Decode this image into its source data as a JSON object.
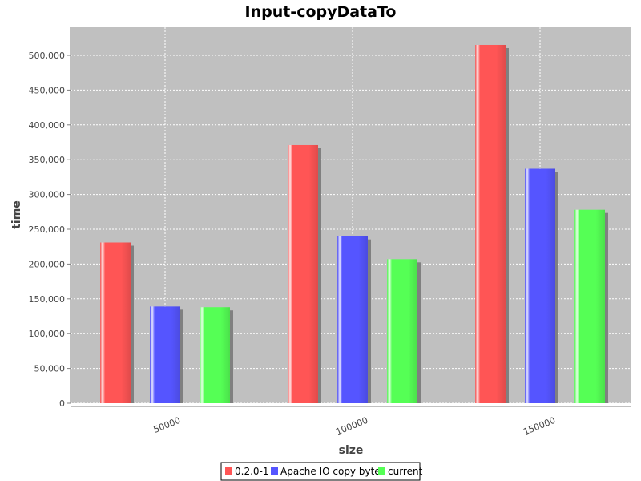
{
  "chart_data": {
    "type": "bar",
    "title": "Input-copyDataTo",
    "xlabel": "size",
    "ylabel": "time",
    "categories": [
      "50000",
      "100000",
      "150000"
    ],
    "series": [
      {
        "name": "0.2.0-1",
        "color": "#ff5555",
        "values": [
          231000,
          371000,
          515000
        ]
      },
      {
        "name": "Apache IO copy bytes",
        "color": "#5555ff",
        "values": [
          139000,
          240000,
          337000
        ]
      },
      {
        "name": "current",
        "color": "#55ff55",
        "values": [
          138000,
          207000,
          278000
        ]
      }
    ],
    "ylim": [
      0,
      540000
    ],
    "yticks": [
      0,
      50000,
      100000,
      150000,
      200000,
      250000,
      300000,
      350000,
      400000,
      450000,
      500000
    ],
    "ytick_labels": [
      "0",
      "50,000",
      "100,000",
      "150,000",
      "200,000",
      "250,000",
      "300,000",
      "350,000",
      "400,000",
      "450,000",
      "500,000"
    ],
    "grid": true,
    "legend_position": "bottom",
    "plot_background": "#c0c0c0"
  }
}
